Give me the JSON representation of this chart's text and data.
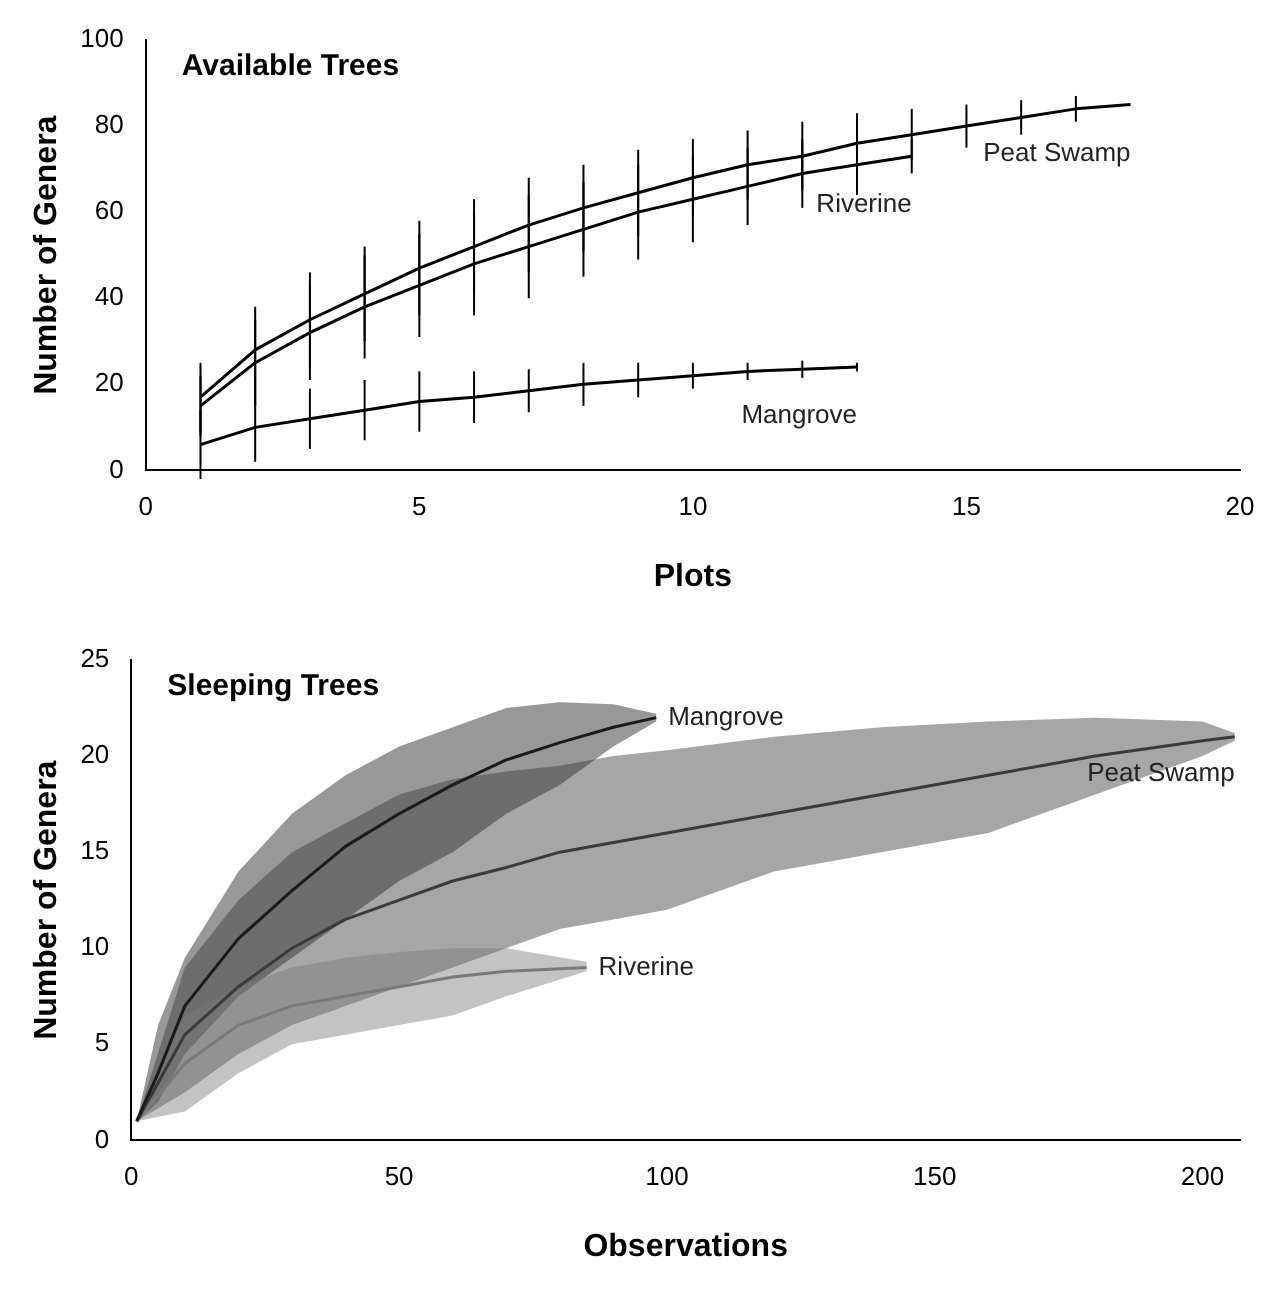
{
  "chart_data": [
    {
      "type": "line",
      "title": "Available Trees",
      "xlabel": "Plots",
      "ylabel": "Number of Genera",
      "xlim": [
        0,
        20
      ],
      "xticks": [
        0,
        5,
        10,
        15,
        20
      ],
      "ylim": [
        0,
        100
      ],
      "yticks": [
        0,
        20,
        40,
        60,
        80,
        100
      ],
      "marker": "none",
      "series": [
        {
          "name": "Peat Swamp",
          "color": "#000000",
          "x": [
            1,
            2,
            3,
            4,
            5,
            6,
            7,
            8,
            9,
            10,
            11,
            12,
            13,
            14,
            15,
            16,
            17,
            18
          ],
          "values": [
            17,
            28,
            35,
            41,
            47,
            52,
            57,
            61,
            64.5,
            68,
            71,
            73,
            76,
            78,
            80,
            82,
            84,
            85
          ],
          "errors": [
            8,
            10,
            11,
            11,
            11,
            11,
            11,
            10,
            10,
            9,
            8,
            8,
            7,
            6,
            5,
            4,
            3,
            null
          ]
        },
        {
          "name": "Riverine",
          "color": "#000000",
          "x": [
            1,
            2,
            3,
            4,
            5,
            6,
            7,
            8,
            9,
            10,
            11,
            12,
            13,
            14
          ],
          "values": [
            15,
            25,
            32,
            38,
            43,
            48,
            52,
            56,
            60,
            63,
            66,
            69,
            71,
            73
          ],
          "errors": [
            7,
            10,
            11,
            12,
            12,
            12,
            12,
            11,
            11,
            10,
            9,
            8,
            7,
            4
          ]
        },
        {
          "name": "Mangrove",
          "color": "#000000",
          "x": [
            1,
            2,
            3,
            4,
            5,
            6,
            7,
            8,
            9,
            10,
            11,
            12,
            13
          ],
          "values": [
            6,
            10,
            12,
            14,
            16,
            17,
            18.5,
            20,
            21,
            22,
            23,
            23.5,
            24
          ],
          "errors": [
            8,
            8,
            7,
            7,
            7,
            6,
            5,
            5,
            4,
            3,
            2,
            2,
            1
          ]
        }
      ]
    },
    {
      "type": "line",
      "title": "Sleeping Trees",
      "xlabel": "Observations",
      "ylabel": "Number of Genera",
      "xlim": [
        0,
        207
      ],
      "xticks": [
        0,
        50,
        100,
        150,
        200
      ],
      "ylim": [
        0,
        25
      ],
      "yticks": [
        0,
        5,
        10,
        15,
        20,
        25
      ],
      "marker": "none",
      "series": [
        {
          "name": "Mangrove",
          "color": "#1a1a1a",
          "x": [
            1,
            5,
            10,
            20,
            30,
            40,
            50,
            60,
            70,
            80,
            90,
            98
          ],
          "values": [
            1,
            3.5,
            7,
            10.5,
            13,
            15.3,
            17,
            18.5,
            19.8,
            20.7,
            21.5,
            22
          ],
          "lower": [
            1,
            2,
            4.5,
            7.5,
            9.5,
            11.5,
            13.5,
            15,
            17,
            18.5,
            20.5,
            21.8
          ],
          "upper": [
            1,
            6,
            9.5,
            14,
            17,
            19,
            20.5,
            21.5,
            22.5,
            22.8,
            22.7,
            22.2
          ]
        },
        {
          "name": "Peat Swamp",
          "color": "#3a3a3a",
          "x": [
            1,
            10,
            20,
            30,
            40,
            50,
            60,
            70,
            80,
            90,
            100,
            120,
            140,
            160,
            180,
            200,
            206
          ],
          "values": [
            1,
            5.5,
            8,
            10,
            11.5,
            12.5,
            13.5,
            14.2,
            15,
            15.5,
            16,
            17,
            18,
            19,
            20,
            20.8,
            21
          ],
          "lower": [
            1,
            2.5,
            4.5,
            6,
            7,
            8,
            9,
            10,
            11,
            11.5,
            12,
            14,
            15,
            16,
            18,
            20,
            20.8
          ],
          "upper": [
            1,
            9,
            12.5,
            15,
            16.5,
            18,
            18.8,
            19.2,
            19.5,
            20,
            20.3,
            21,
            21.5,
            21.8,
            22,
            21.8,
            21.2
          ]
        },
        {
          "name": "Riverine",
          "color": "#7a7a7a",
          "x": [
            1,
            10,
            20,
            30,
            40,
            50,
            60,
            70,
            85
          ],
          "values": [
            1,
            4,
            6,
            7,
            7.5,
            8,
            8.5,
            8.8,
            9
          ],
          "lower": [
            1,
            1.5,
            3.5,
            5,
            5.5,
            6,
            6.5,
            7.5,
            8.8
          ],
          "upper": [
            1,
            6.5,
            8,
            9,
            9.5,
            9.8,
            10,
            10,
            9.3
          ]
        }
      ]
    }
  ]
}
